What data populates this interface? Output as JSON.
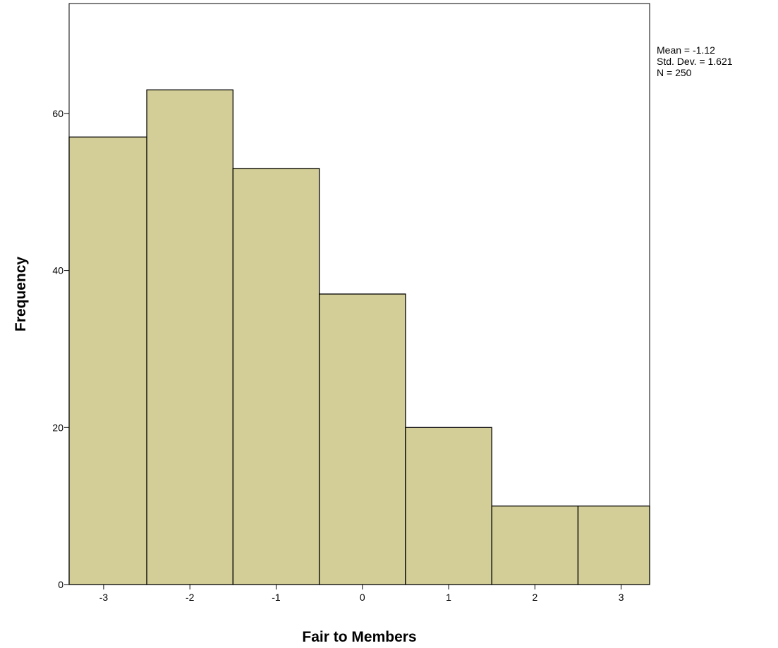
{
  "chart_data": {
    "type": "bar",
    "histogram": true,
    "title": "",
    "xlabel": "Fair to Members",
    "ylabel": "Frequency",
    "categories": [
      "-3",
      "-2",
      "-1",
      "0",
      "1",
      "2",
      "3"
    ],
    "values": [
      57,
      63,
      53,
      37,
      20,
      10,
      10
    ],
    "bin_edges": [
      -3.4,
      -2.5,
      -1.5,
      -0.5,
      0.5,
      1.5,
      2.5,
      3.33
    ],
    "xlim": [
      -3.4,
      3.33
    ],
    "ylim": [
      0,
      74
    ],
    "x_ticks": [
      -3,
      -2,
      -1,
      0,
      1,
      2,
      3
    ],
    "y_ticks": [
      0,
      20,
      40,
      60
    ],
    "grid": false,
    "bar_color": "#d3ce97",
    "bar_edge_color": "#000000",
    "stats": {
      "mean": "Mean = -1.12",
      "std_dev": "Std. Dev. = 1.621",
      "n": "N = 250"
    }
  }
}
